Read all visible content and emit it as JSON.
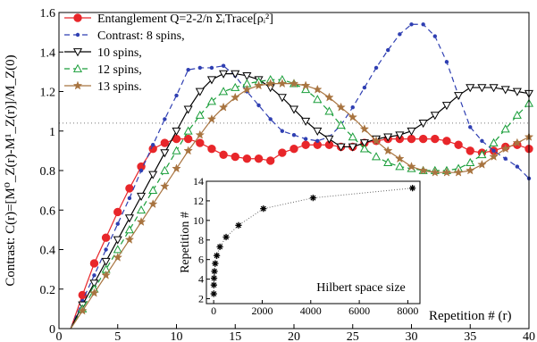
{
  "chart_data": [
    {
      "type": "line",
      "role": "main",
      "ylabel": "Contrast:   C(r)=[M⁰_Z(r)-M¹_Z(r)]/M_Z(0)",
      "xlabel": "Repetition # (r)",
      "xlim": [
        0,
        40
      ],
      "ylim": [
        0,
        1.6
      ],
      "xticks": [
        0,
        5,
        10,
        15,
        20,
        25,
        30,
        35,
        40
      ],
      "yticks": [
        0,
        0.2,
        0.4,
        0.6,
        0.8,
        1.0,
        1.2,
        1.4,
        1.6
      ],
      "ytick_labels": [
        "0",
        "0.2",
        "0.4",
        "0.6",
        "0.8",
        "1",
        "1.2",
        "1.4",
        "1.6"
      ],
      "reference_line_y": 1.04,
      "legend_position": "top-left",
      "series": [
        {
          "name": "Entanglement Q=2-2/n ΣᵢTrace[ρᵢ²]",
          "color": "#e8262a",
          "dash": "",
          "marker": "circle",
          "marker_every": 1,
          "x": [
            1,
            2,
            3,
            4,
            5,
            6,
            7,
            8,
            9,
            10,
            11,
            12,
            13,
            14,
            15,
            16,
            17,
            18,
            19,
            20,
            21,
            22,
            23,
            24,
            25,
            26,
            27,
            28,
            29,
            30,
            31,
            32,
            33,
            34,
            35,
            36,
            37,
            38,
            39,
            40
          ],
          "y": [
            0,
            0.17,
            0.33,
            0.46,
            0.59,
            0.71,
            0.82,
            0.91,
            0.94,
            0.96,
            0.96,
            0.94,
            0.91,
            0.88,
            0.87,
            0.86,
            0.86,
            0.85,
            0.89,
            0.91,
            0.93,
            0.93,
            0.93,
            0.92,
            0.92,
            0.94,
            0.95,
            0.96,
            0.96,
            0.96,
            0.96,
            0.96,
            0.95,
            0.93,
            0.9,
            0.89,
            0.9,
            0.92,
            0.93,
            0.91
          ]
        },
        {
          "name": "Contrast: 8 spins,",
          "color": "#2f3fb2",
          "dash": "6,4",
          "marker": "dot",
          "marker_every": 1,
          "x": [
            1,
            2,
            3,
            4,
            5,
            6,
            7,
            8,
            9,
            10,
            11,
            12,
            13,
            14,
            15,
            16,
            17,
            18,
            19,
            20,
            21,
            22,
            23,
            24,
            25,
            26,
            27,
            28,
            29,
            30,
            31,
            32,
            33,
            34,
            35,
            36,
            37,
            38,
            39,
            40
          ],
          "y": [
            0,
            0.14,
            0.27,
            0.4,
            0.53,
            0.66,
            0.8,
            0.93,
            1.06,
            1.18,
            1.31,
            1.32,
            1.32,
            1.33,
            1.28,
            1.2,
            1.13,
            1.06,
            1.0,
            0.98,
            0.96,
            0.95,
            0.97,
            1.03,
            1.12,
            1.22,
            1.32,
            1.41,
            1.49,
            1.54,
            1.54,
            1.48,
            1.35,
            1.18,
            1.02,
            0.95,
            0.9,
            0.86,
            0.82,
            0.76
          ]
        },
        {
          "name": "10 spins,",
          "color": "#000000",
          "dash": "",
          "marker": "tri-down",
          "marker_every": 1,
          "x": [
            1,
            2,
            3,
            4,
            5,
            6,
            7,
            8,
            9,
            10,
            11,
            12,
            13,
            14,
            15,
            16,
            17,
            18,
            19,
            20,
            21,
            22,
            23,
            24,
            25,
            26,
            27,
            28,
            29,
            30,
            31,
            32,
            33,
            34,
            35,
            36,
            37,
            38,
            39,
            40
          ],
          "y": [
            0,
            0.12,
            0.23,
            0.34,
            0.45,
            0.56,
            0.67,
            0.78,
            0.89,
            1.0,
            1.11,
            1.2,
            1.26,
            1.29,
            1.29,
            1.28,
            1.26,
            1.22,
            1.17,
            1.11,
            1.05,
            1.0,
            0.96,
            0.92,
            0.92,
            0.94,
            0.96,
            0.97,
            0.98,
            1.0,
            1.04,
            1.08,
            1.13,
            1.18,
            1.22,
            1.22,
            1.22,
            1.21,
            1.2,
            1.19
          ]
        },
        {
          "name": "12 spins,",
          "color": "#1a9e3a",
          "dash": "6,4",
          "marker": "tri-up",
          "marker_every": 1,
          "x": [
            1,
            2,
            3,
            4,
            5,
            6,
            7,
            8,
            9,
            10,
            11,
            12,
            13,
            14,
            15,
            16,
            17,
            18,
            19,
            20,
            21,
            22,
            23,
            24,
            25,
            26,
            27,
            28,
            29,
            30,
            31,
            32,
            33,
            34,
            35,
            36,
            37,
            38,
            39,
            40
          ],
          "y": [
            0,
            0.1,
            0.2,
            0.3,
            0.4,
            0.5,
            0.6,
            0.7,
            0.8,
            0.9,
            1.0,
            1.08,
            1.15,
            1.2,
            1.22,
            1.24,
            1.25,
            1.26,
            1.26,
            1.24,
            1.21,
            1.16,
            1.1,
            1.03,
            0.97,
            0.91,
            0.87,
            0.84,
            0.82,
            0.81,
            0.8,
            0.8,
            0.8,
            0.81,
            0.84,
            0.88,
            0.94,
            1.01,
            1.08,
            1.14
          ]
        },
        {
          "name": "13 spins.",
          "color": "#a87440",
          "dash": "",
          "marker": "star",
          "marker_every": 1,
          "x": [
            1,
            2,
            3,
            4,
            5,
            6,
            7,
            8,
            9,
            10,
            11,
            12,
            13,
            14,
            15,
            16,
            17,
            18,
            19,
            20,
            21,
            22,
            23,
            24,
            25,
            26,
            27,
            28,
            29,
            30,
            31,
            32,
            33,
            34,
            35,
            36,
            37,
            38,
            39,
            40
          ],
          "y": [
            0,
            0.09,
            0.18,
            0.27,
            0.36,
            0.45,
            0.54,
            0.63,
            0.72,
            0.81,
            0.9,
            0.98,
            1.06,
            1.12,
            1.17,
            1.21,
            1.23,
            1.24,
            1.24,
            1.24,
            1.23,
            1.21,
            1.17,
            1.12,
            1.07,
            1.01,
            0.95,
            0.9,
            0.86,
            0.82,
            0.8,
            0.79,
            0.79,
            0.79,
            0.8,
            0.83,
            0.87,
            0.91,
            0.94,
            0.97
          ]
        }
      ]
    },
    {
      "type": "scatter",
      "role": "inset",
      "xlabel": "Hilbert space size",
      "ylabel": "Repetition #",
      "xlim": [
        -300,
        8500
      ],
      "ylim": [
        1.5,
        14
      ],
      "xticks": [
        0,
        2000,
        4000,
        6000,
        8000
      ],
      "yticks": [
        2,
        4,
        6,
        8,
        10,
        12,
        14
      ],
      "marker": "asterisk",
      "fit_line": "dotted",
      "points": {
        "x": [
          4,
          8,
          16,
          32,
          64,
          128,
          256,
          512,
          1024,
          2048,
          4096,
          8192
        ],
        "y": [
          2.5,
          3.4,
          4.1,
          4.8,
          5.6,
          6.4,
          7.3,
          8.3,
          9.5,
          11.2,
          12.3,
          13.3
        ]
      }
    }
  ]
}
